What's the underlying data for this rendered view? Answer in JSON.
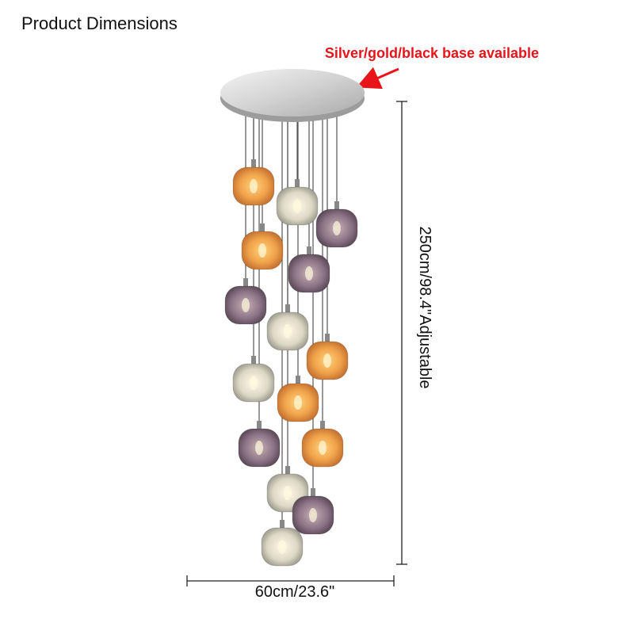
{
  "header": {
    "title": "Product Dimensions"
  },
  "note": {
    "label": "Silver/gold/black base available"
  },
  "dimensions": {
    "height": "250cm/98.4\"Adjustable",
    "width": "60cm/23.6\""
  }
}
